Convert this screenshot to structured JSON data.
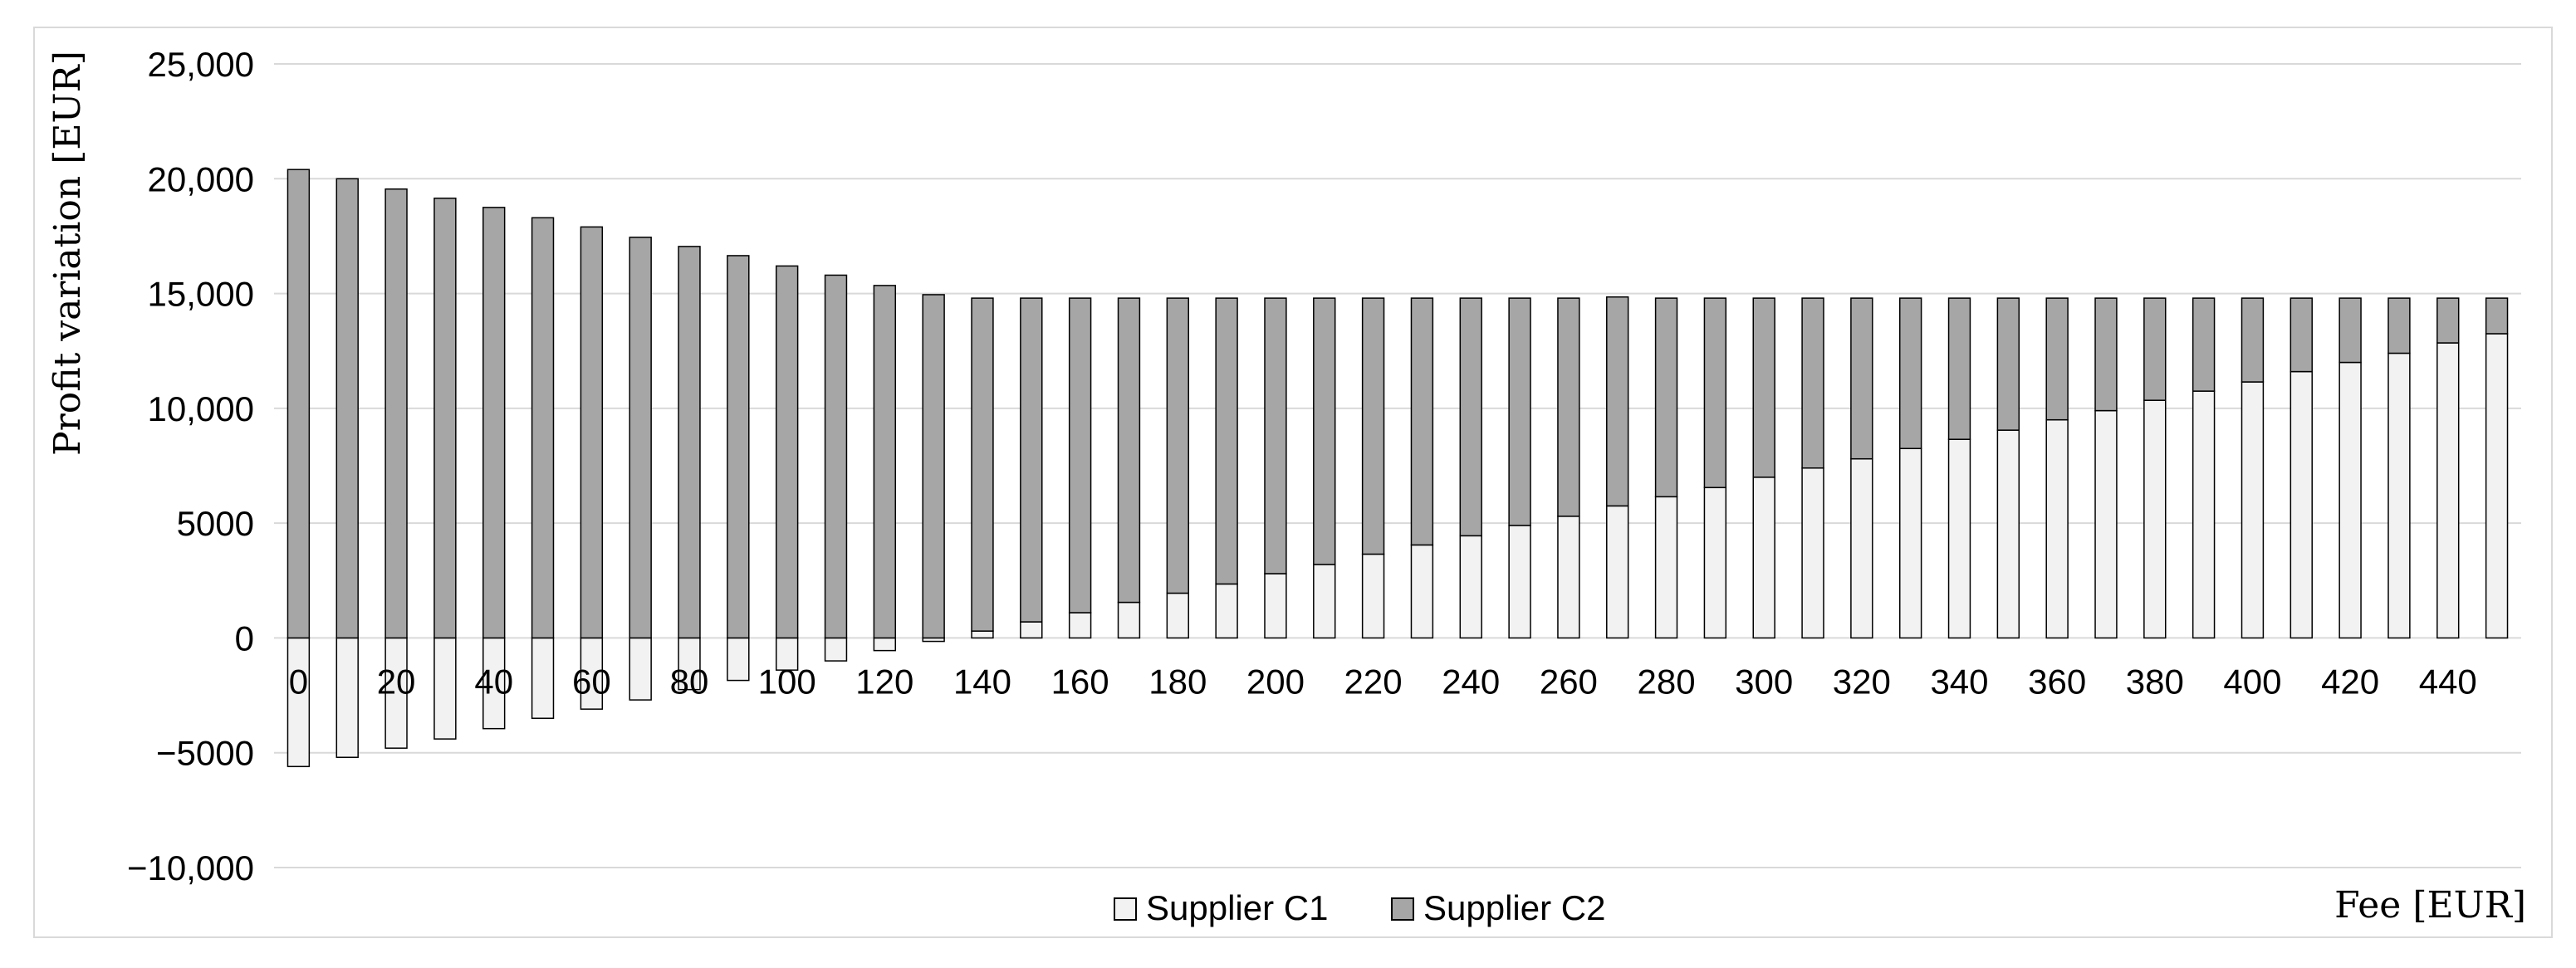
{
  "chart_data": {
    "type": "bar",
    "stacked": true,
    "title": "",
    "xlabel": "Fee [EUR]",
    "ylabel": "Profit variation [EUR]",
    "ylim": [
      -10000,
      25000
    ],
    "yticks": [
      25000,
      20000,
      15000,
      10000,
      5000,
      0,
      -5000,
      -10000
    ],
    "ytick_labels": [
      "25,000",
      "20,000",
      "15,000",
      "10,000",
      "5000",
      "0",
      "−5000",
      "−10,000"
    ],
    "xtick_labels": [
      "0",
      "20",
      "40",
      "60",
      "80",
      "100",
      "120",
      "140",
      "160",
      "180",
      "200",
      "220",
      "240",
      "260",
      "280",
      "300",
      "320",
      "340",
      "360",
      "380",
      "400",
      "420",
      "440"
    ],
    "grid": true,
    "legend_position": "bottom-center",
    "categories": [
      0,
      10,
      20,
      30,
      40,
      50,
      60,
      70,
      80,
      90,
      100,
      110,
      120,
      130,
      140,
      150,
      160,
      170,
      180,
      190,
      200,
      210,
      220,
      230,
      240,
      250,
      260,
      270,
      280,
      290,
      300,
      310,
      320,
      330,
      340,
      350,
      360,
      370,
      380,
      390,
      400,
      410,
      420,
      430,
      440,
      450
    ],
    "series": [
      {
        "name": "Supplier C1",
        "color": "#f2f2f2",
        "values": [
          -5600,
          -5200,
          -4800,
          -4400,
          -3950,
          -3500,
          -3100,
          -2700,
          -2250,
          -1850,
          -1400,
          -1000,
          -550,
          -150,
          300,
          700,
          1100,
          1550,
          1950,
          2350,
          2800,
          3200,
          3650,
          4050,
          4450,
          4900,
          5300,
          5750,
          6150,
          6550,
          7000,
          7400,
          7800,
          8250,
          8650,
          9050,
          9500,
          9900,
          10350,
          10750,
          11150,
          11600,
          12000,
          12400,
          12850,
          13250
        ]
      },
      {
        "name": "Supplier C2",
        "color": "#a6a6a6",
        "values": [
          20400,
          20000,
          19550,
          19150,
          18750,
          18300,
          17900,
          17450,
          17050,
          16650,
          16200,
          15800,
          15350,
          14950,
          14500,
          14100,
          13700,
          13250,
          12850,
          12450,
          12000,
          11600,
          11150,
          10750,
          10350,
          9900,
          9500,
          9100,
          8650,
          8250,
          7800,
          7400,
          7000,
          6550,
          6150,
          5750,
          5300,
          4900,
          4450,
          4050,
          3650,
          3200,
          2800,
          2400,
          1950,
          1550
        ]
      }
    ]
  }
}
